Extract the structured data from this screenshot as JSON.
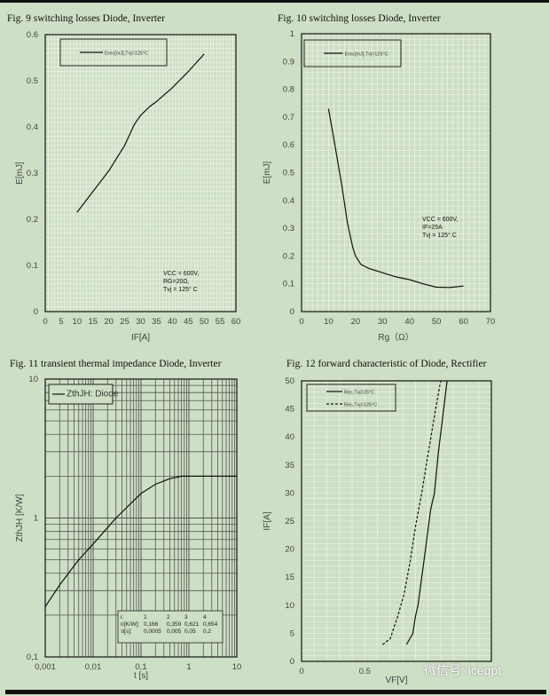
{
  "chart_data": [
    {
      "type": "line",
      "title": "Fig. 9 switching losses Diode, Inverter",
      "xlabel": "IF[A]",
      "ylabel": "E[mJ]",
      "xlim": [
        0,
        60
      ],
      "ylim": [
        0,
        0.6
      ],
      "xticks": [
        "0",
        "5",
        "10",
        "15",
        "20",
        "25",
        "30",
        "35",
        "40",
        "45",
        "50",
        "55",
        "60"
      ],
      "yticks": [
        "0",
        "0.1",
        "0.2",
        "0.3",
        "0.4",
        "0.5",
        "0.6"
      ],
      "grid": true,
      "legend": "top-left",
      "series": [
        {
          "name": "Erec[mJ],Tvj=125°C",
          "style": "solid",
          "x": [
            10,
            15,
            20,
            25,
            28,
            30,
            33,
            35,
            40,
            45,
            50
          ],
          "y": [
            0.215,
            0.26,
            0.305,
            0.36,
            0.405,
            0.425,
            0.445,
            0.455,
            0.485,
            0.52,
            0.558
          ]
        }
      ],
      "annotation": [
        "VCC = 600V,",
        "RG=20Ω,",
        "Tvj = 125° C"
      ]
    },
    {
      "type": "line",
      "title": "Fig. 10  switching losses Diode, Inverter",
      "xlabel": "Rg（Ω）",
      "ylabel": "E[mJ]",
      "xlim": [
        0,
        70
      ],
      "ylim": [
        0,
        1
      ],
      "xticks": [
        "0",
        "10",
        "20",
        "30",
        "40",
        "50",
        "60",
        "70"
      ],
      "yticks": [
        "0",
        "0.1",
        "0.2",
        "0.3",
        "0.4",
        "0.5",
        "0.6",
        "0.7",
        "0.8",
        "0.9",
        "1"
      ],
      "grid": true,
      "legend": "top-left",
      "series": [
        {
          "name": "Erec[mJ],Tvj=125°C",
          "style": "solid",
          "x": [
            10,
            12,
            15,
            17,
            19,
            20,
            22,
            25,
            30,
            35,
            40,
            45,
            50,
            55,
            60
          ],
          "y": [
            0.73,
            0.62,
            0.45,
            0.32,
            0.23,
            0.2,
            0.17,
            0.155,
            0.14,
            0.125,
            0.115,
            0.1,
            0.088,
            0.087,
            0.092
          ]
        }
      ],
      "annotation": [
        "VCC = 600V,",
        "IF=25A",
        "Tvj = 125° C"
      ]
    },
    {
      "type": "line",
      "title": "Fig. 11  transient thermal impedance Diode, Inverter",
      "xlabel": "t [s]",
      "ylabel": "ZthJH [K/W]",
      "xscale": "log",
      "yscale": "log",
      "xlim": [
        0.001,
        10
      ],
      "ylim": [
        0.1,
        10
      ],
      "xticks": [
        "0,001",
        "0,01",
        "0,1",
        "1",
        "10"
      ],
      "yticks": [
        "0,1",
        "1",
        "10"
      ],
      "grid": true,
      "legend": "top-left",
      "series": [
        {
          "name": "ZthJH: Diode",
          "style": "solid",
          "x": [
            0.001,
            0.002,
            0.005,
            0.01,
            0.03,
            0.1,
            0.2,
            0.4,
            0.7,
            1,
            10
          ],
          "y": [
            0.23,
            0.33,
            0.5,
            0.65,
            1.0,
            1.5,
            1.75,
            1.92,
            2.0,
            2.0,
            2.0
          ]
        }
      ],
      "table": {
        "rows": [
          [
            "i:",
            "1",
            "2",
            "3",
            "4"
          ],
          [
            "ri[K/W]:",
            "0,166",
            "0,359",
            "0,621",
            "0,654"
          ],
          [
            "τi[s]:",
            "0,0005",
            "0,005",
            "0,05",
            "0,2"
          ]
        ]
      }
    },
    {
      "type": "line",
      "title": "Fig. 12  forward characteristic of  Diode, Rectifier",
      "xlabel": "VF[V]",
      "ylabel": "IF[A]",
      "xlim": [
        0,
        1.5
      ],
      "ylim": [
        0,
        50
      ],
      "xticks": [
        "0",
        "0.5"
      ],
      "yticks": [
        "0",
        "5",
        "10",
        "15",
        "20",
        "25",
        "30",
        "35",
        "40",
        "45",
        "50"
      ],
      "grid": true,
      "legend": "top-left",
      "series": [
        {
          "name": "Rec,Tvj=25°C",
          "style": "solid",
          "x": [
            0.83,
            0.88,
            0.9,
            0.92,
            0.95,
            0.98,
            1.02,
            1.05,
            1.08,
            1.15
          ],
          "y": [
            3,
            5,
            8,
            10,
            15,
            20,
            27,
            30,
            37,
            50
          ]
        },
        {
          "name": "Rec,Tvj=125°C",
          "style": "dashed",
          "x": [
            0.64,
            0.7,
            0.76,
            0.81,
            0.86,
            0.9,
            0.95,
            1.0,
            1.06,
            1.1
          ],
          "y": [
            3,
            4,
            8,
            12,
            18,
            24,
            30,
            37,
            45,
            50
          ]
        }
      ]
    }
  ],
  "watermark": "微信号: iceqpt",
  "colors": {
    "background": "#cddfc4",
    "grid": "#eef5e9",
    "line": "#111111"
  }
}
